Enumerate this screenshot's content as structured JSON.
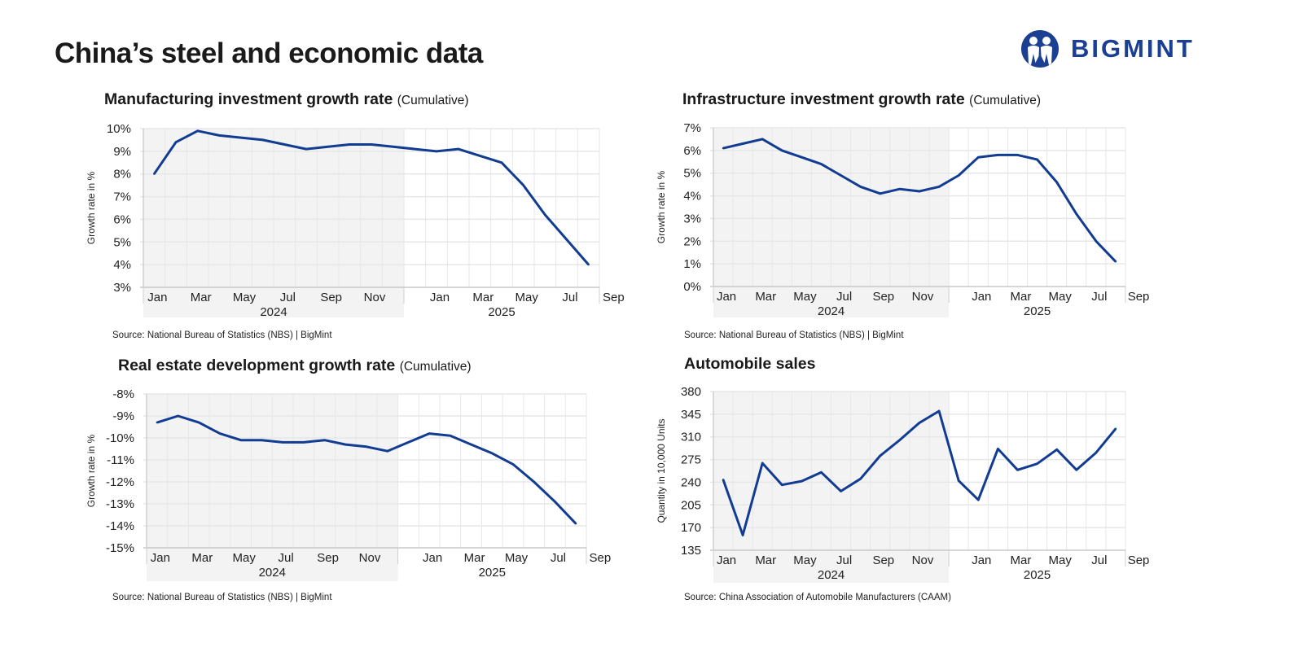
{
  "title": "China’s steel and economic data",
  "logo": {
    "text": "BIGMINT",
    "color": "#1b3f93"
  },
  "colors": {
    "line": "#123c91",
    "shade": "#f3f3f3",
    "grid": "#e7e7e7"
  },
  "chart_data": [
    {
      "type": "line",
      "title": "Manufacturing investment growth rate",
      "subtitle": "(Cumulative)",
      "ylabel": "Growth rate in %",
      "source": "Source: National Bureau of Statistics (NBS) | BigMint",
      "ylim": [
        3,
        10
      ],
      "ystep": 1,
      "ysuffix": "%",
      "years": [
        "2024",
        "2025"
      ],
      "x_tick_labels": [
        "Jan",
        "Mar",
        "May",
        "Jul",
        "Sep",
        "Nov",
        "Jan",
        "Mar",
        "May",
        "Jul",
        "Sep"
      ],
      "x": [
        "Jan 2024",
        "Feb 2024",
        "Mar 2024",
        "Apr 2024",
        "May 2024",
        "Jun 2024",
        "Jul 2024",
        "Aug 2024",
        "Sep 2024",
        "Oct 2024",
        "Nov 2024",
        "Dec 2024",
        "Jan 2025",
        "Feb 2025",
        "Mar 2025",
        "Apr 2025",
        "May 2025",
        "Jun 2025",
        "Jul 2025",
        "Aug 2025",
        "Sep 2025"
      ],
      "values": [
        8.0,
        9.4,
        9.9,
        9.7,
        9.6,
        9.5,
        9.3,
        9.1,
        9.2,
        9.3,
        9.3,
        9.2,
        9.1,
        9.0,
        9.1,
        8.8,
        8.5,
        7.5,
        6.2,
        5.1,
        4.0
      ],
      "grid": true
    },
    {
      "type": "line",
      "title": "Infrastructure investment growth rate",
      "subtitle": "(Cumulative)",
      "ylabel": "Growth rate in %",
      "source": "Source: National Bureau of Statistics (NBS) | BigMint",
      "ylim": [
        0,
        7
      ],
      "ystep": 1,
      "ysuffix": "%",
      "years": [
        "2024",
        "2025"
      ],
      "x_tick_labels": [
        "Jan",
        "Mar",
        "May",
        "Jul",
        "Sep",
        "Nov",
        "Jan",
        "Mar",
        "May",
        "Jul",
        "Sep"
      ],
      "x": [
        "Jan 2024",
        "Feb 2024",
        "Mar 2024",
        "Apr 2024",
        "May 2024",
        "Jun 2024",
        "Jul 2024",
        "Aug 2024",
        "Sep 2024",
        "Oct 2024",
        "Nov 2024",
        "Dec 2024",
        "Jan 2025",
        "Feb 2025",
        "Mar 2025",
        "Apr 2025",
        "May 2025",
        "Jun 2025",
        "Jul 2025",
        "Aug 2025",
        "Sep 2025"
      ],
      "values": [
        6.1,
        6.3,
        6.5,
        6.0,
        5.7,
        5.4,
        4.9,
        4.4,
        4.1,
        4.3,
        4.2,
        4.4,
        4.9,
        5.7,
        5.8,
        5.8,
        5.6,
        4.6,
        3.2,
        2.0,
        1.1
      ],
      "grid": true
    },
    {
      "type": "line",
      "title": "Real estate development growth rate",
      "subtitle": "(Cumulative)",
      "ylabel": "Growth rate in %",
      "source": "Source: National Bureau of Statistics (NBS) | BigMint",
      "ylim": [
        -15,
        -8
      ],
      "ystep": 1,
      "ysuffix": "%",
      "years": [
        "2024",
        "2025"
      ],
      "x_tick_labels": [
        "Jan",
        "Mar",
        "May",
        "Jul",
        "Sep",
        "Nov",
        "Jan",
        "Mar",
        "May",
        "Jul",
        "Sep"
      ],
      "x": [
        "Jan 2024",
        "Feb 2024",
        "Mar 2024",
        "Apr 2024",
        "May 2024",
        "Jun 2024",
        "Jul 2024",
        "Aug 2024",
        "Sep 2024",
        "Oct 2024",
        "Nov 2024",
        "Dec 2024",
        "Jan 2025",
        "Feb 2025",
        "Mar 2025",
        "Apr 2025",
        "May 2025",
        "Jun 2025",
        "Jul 2025",
        "Aug 2025",
        "Sep 2025"
      ],
      "values": [
        -9.3,
        -9.0,
        -9.3,
        -9.8,
        -10.1,
        -10.1,
        -10.2,
        -10.2,
        -10.1,
        -10.3,
        -10.4,
        -10.6,
        -10.2,
        -9.8,
        -9.9,
        -10.3,
        -10.7,
        -11.2,
        -12.0,
        -12.9,
        -13.9
      ],
      "grid": true
    },
    {
      "type": "line",
      "title": "Automobile sales",
      "subtitle": "",
      "ylabel": "Quantity in 10,000 Units",
      "source": "Source: China Association of Automobile Manufacturers (CAAM)",
      "ylim": [
        135,
        380
      ],
      "ystep": 35,
      "ysuffix": "",
      "years": [
        "2024",
        "2025"
      ],
      "x_tick_labels": [
        "Jan",
        "Mar",
        "May",
        "Jul",
        "Sep",
        "Nov",
        "Jan",
        "Mar",
        "May",
        "Jul",
        "Sep"
      ],
      "x": [
        "Jan 2024",
        "Feb 2024",
        "Mar 2024",
        "Apr 2024",
        "May 2024",
        "Jun 2024",
        "Jul 2024",
        "Aug 2024",
        "Sep 2024",
        "Oct 2024",
        "Nov 2024",
        "Dec 2024",
        "Jan 2025",
        "Feb 2025",
        "Mar 2025",
        "Apr 2025",
        "May 2025",
        "Jun 2025",
        "Jul 2025",
        "Aug 2025",
        "Sep 2025"
      ],
      "values": [
        243.9,
        158.4,
        269.4,
        235.9,
        241.7,
        255.3,
        226.2,
        245.3,
        280.9,
        305.3,
        331.7,
        349.9,
        242.3,
        212.8,
        291.5,
        259.0,
        268.6,
        290.4,
        259.1,
        285.7,
        322.6
      ],
      "grid": true
    }
  ]
}
